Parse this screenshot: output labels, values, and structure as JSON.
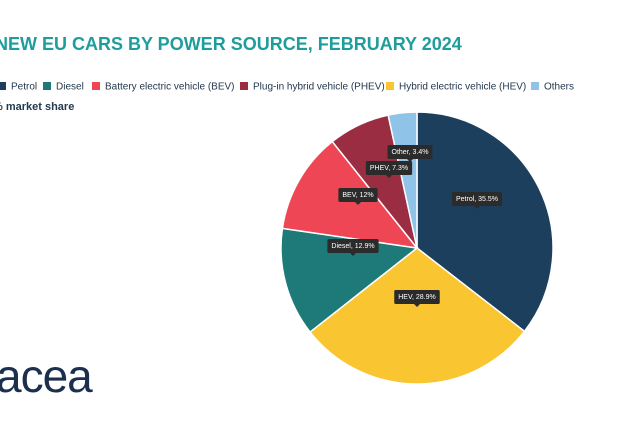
{
  "chart_data": {
    "type": "pie",
    "title": "NEW EU CARS BY POWER SOURCE, FEBRUARY 2024",
    "subtitle": "% market share",
    "values": [
      35.5,
      28.9,
      12.9,
      12,
      7.3,
      3.4
    ],
    "value_labels": [
      "Petrol, 35.5%",
      "HEV, 28.9%",
      "Diesel, 12.9%",
      "BEV, 12%",
      "PHEV, 7.3%",
      "Other, 3.4%"
    ],
    "colors": [
      "#1d3f5e",
      "#f9c530",
      "#1e7a78",
      "#ee4654",
      "#9b2d42",
      "#8fc3e8"
    ],
    "legend": [
      {
        "name": "Petrol",
        "color": "#1d3f5e"
      },
      {
        "name": "Diesel",
        "color": "#1e7a78"
      },
      {
        "name": "Battery electric vehicle (BEV)",
        "color": "#ee4654"
      },
      {
        "name": "Plug-in hybrid vehicle (PHEV)",
        "color": "#9b2d42"
      },
      {
        "name": "Hybrid electric vehicle (HEV)",
        "color": "#f9c530"
      },
      {
        "name": "Others",
        "color": "#8fc3e8"
      }
    ]
  },
  "logo": "acea"
}
